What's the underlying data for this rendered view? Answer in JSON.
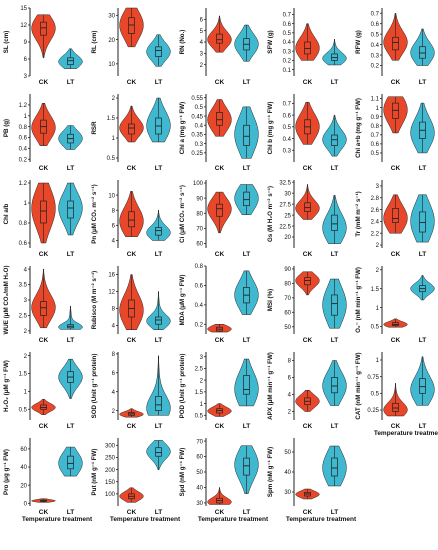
{
  "colors": {
    "ck": "#e8472a",
    "lt": "#3fb8d0",
    "axis": "#222222",
    "outline": "#222222"
  },
  "group_labels": [
    "CK",
    "LT"
  ],
  "xlabel": "Temperature treatment",
  "chart_data": [
    {
      "type": "violin",
      "ylabel": "SL (cm)",
      "ylim": [
        3,
        15
      ],
      "ticks": [
        3,
        6,
        9,
        12,
        15
      ],
      "series": [
        {
          "name": "CK",
          "min": 6.2,
          "q1": 10.2,
          "median": 11.5,
          "q3": 12.5,
          "max": 13.8,
          "mode": 11.5
        },
        {
          "name": "LT",
          "min": 4.3,
          "q1": 5.0,
          "median": 5.7,
          "q3": 6.2,
          "max": 7.8,
          "mode": 5.5
        }
      ]
    },
    {
      "type": "violin",
      "ylabel": "RL (cm)",
      "ylim": [
        5,
        33
      ],
      "ticks": [
        10,
        20,
        30
      ],
      "series": [
        {
          "name": "CK",
          "min": 17,
          "q1": 22.5,
          "median": 26,
          "q3": 29,
          "max": 33,
          "mode": 26
        },
        {
          "name": "LT",
          "min": 9,
          "q1": 13,
          "median": 15.5,
          "q3": 17,
          "max": 22,
          "mode": 15
        }
      ]
    },
    {
      "type": "violin",
      "ylabel": "RN (No.)",
      "ylim": [
        1,
        7
      ],
      "ticks": [
        2,
        3,
        4,
        5,
        6
      ],
      "series": [
        {
          "name": "CK",
          "min": 3.1,
          "q1": 3.9,
          "median": 4.2,
          "q3": 4.7,
          "max": 6.3,
          "mode": 4.2
        },
        {
          "name": "LT",
          "min": 2.3,
          "q1": 3.3,
          "median": 3.8,
          "q3": 4.3,
          "max": 5.5,
          "mode": 3.8
        }
      ]
    },
    {
      "type": "violin",
      "ylabel": "SFW (g)",
      "ylim": [
        0.03,
        0.77
      ],
      "ticks": [
        0.1,
        0.2,
        0.3,
        0.4,
        0.5,
        0.6,
        0.7
      ],
      "series": [
        {
          "name": "CK",
          "min": 0.2,
          "q1": 0.27,
          "median": 0.33,
          "q3": 0.4,
          "max": 0.6,
          "mode": 0.33
        },
        {
          "name": "LT",
          "min": 0.15,
          "q1": 0.2,
          "median": 0.23,
          "q3": 0.27,
          "max": 0.43,
          "mode": 0.22
        }
      ]
    },
    {
      "type": "violin",
      "ylabel": "RFW (g)",
      "ylim": [
        0.1,
        0.75
      ],
      "ticks": [
        0.2,
        0.3,
        0.4,
        0.5,
        0.6,
        0.7
      ],
      "series": [
        {
          "name": "CK",
          "min": 0.25,
          "q1": 0.35,
          "median": 0.42,
          "q3": 0.47,
          "max": 0.7,
          "mode": 0.42
        },
        {
          "name": "LT",
          "min": 0.2,
          "q1": 0.27,
          "median": 0.32,
          "q3": 0.38,
          "max": 0.55,
          "mode": 0.32
        }
      ]
    },
    {
      "type": "violin",
      "ylabel": "PB (g)",
      "ylim": [
        0.15,
        1.4
      ],
      "ticks": [
        0.2,
        0.4,
        0.6,
        0.8,
        1.0,
        1.2
      ],
      "series": [
        {
          "name": "CK",
          "min": 0.45,
          "q1": 0.68,
          "median": 0.8,
          "q3": 0.92,
          "max": 1.23,
          "mode": 0.78
        },
        {
          "name": "LT",
          "min": 0.38,
          "q1": 0.5,
          "median": 0.58,
          "q3": 0.66,
          "max": 0.82,
          "mode": 0.58
        }
      ]
    },
    {
      "type": "violin",
      "ylabel": "RSR",
      "ylim": [
        0.4,
        2.1
      ],
      "ticks": [
        0.5,
        1.0,
        1.5,
        2.0
      ],
      "series": [
        {
          "name": "CK",
          "min": 0.9,
          "q1": 1.1,
          "median": 1.25,
          "q3": 1.35,
          "max": 1.8,
          "mode": 1.25
        },
        {
          "name": "LT",
          "min": 0.9,
          "q1": 1.1,
          "median": 1.3,
          "q3": 1.5,
          "max": 2.0,
          "mode": 1.3
        }
      ]
    },
    {
      "type": "violin",
      "ylabel": "Chl a (mg g⁻¹ FW)",
      "ylim": [
        0.2,
        0.57
      ],
      "ticks": [
        0.25,
        0.3,
        0.35,
        0.4,
        0.45,
        0.5,
        0.55
      ],
      "series": [
        {
          "name": "CK",
          "min": 0.34,
          "q1": 0.4,
          "median": 0.43,
          "q3": 0.47,
          "max": 0.54,
          "mode": 0.43
        },
        {
          "name": "LT",
          "min": 0.22,
          "q1": 0.29,
          "median": 0.34,
          "q3": 0.4,
          "max": 0.5,
          "mode": 0.35
        }
      ]
    },
    {
      "type": "violin",
      "ylabel": "Chl b (mg g⁻¹ FW)",
      "ylim": [
        0.2,
        0.78
      ],
      "ticks": [
        0.3,
        0.4,
        0.5,
        0.6,
        0.7
      ],
      "series": [
        {
          "name": "CK",
          "min": 0.35,
          "q1": 0.44,
          "median": 0.5,
          "q3": 0.56,
          "max": 0.71,
          "mode": 0.5
        },
        {
          "name": "LT",
          "min": 0.25,
          "q1": 0.34,
          "median": 0.39,
          "q3": 0.43,
          "max": 0.6,
          "mode": 0.39
        }
      ]
    },
    {
      "type": "violin",
      "ylabel": "Chl a+b (mg g⁻¹ FW)",
      "ylim": [
        0.4,
        1.15
      ],
      "ticks": [
        0.5,
        0.6,
        0.7,
        0.8,
        0.9,
        1.0,
        1.1
      ],
      "series": [
        {
          "name": "CK",
          "min": 0.72,
          "q1": 0.88,
          "median": 0.97,
          "q3": 1.05,
          "max": 1.12,
          "mode": 0.98
        },
        {
          "name": "LT",
          "min": 0.5,
          "q1": 0.66,
          "median": 0.75,
          "q3": 0.84,
          "max": 1.05,
          "mode": 0.72
        }
      ]
    },
    {
      "type": "violin",
      "ylabel": "Chl a/b",
      "ylim": [
        0.55,
        1.23
      ],
      "ticks": [
        0.6,
        0.8,
        1.0,
        1.2
      ],
      "series": [
        {
          "name": "CK",
          "min": 0.6,
          "q1": 0.8,
          "median": 0.92,
          "q3": 1.02,
          "max": 1.2,
          "mode": 0.95
        },
        {
          "name": "LT",
          "min": 0.68,
          "q1": 0.85,
          "median": 0.95,
          "q3": 1.02,
          "max": 1.2,
          "mode": 0.95
        }
      ]
    },
    {
      "type": "violin",
      "ylabel": "Pn (μM CO₂ m⁻² s⁻¹)",
      "ylim": [
        3,
        12
      ],
      "ticks": [
        4,
        6,
        8,
        10
      ],
      "series": [
        {
          "name": "CK",
          "min": 4.5,
          "q1": 5.8,
          "median": 6.7,
          "q3": 7.8,
          "max": 10.5,
          "mode": 6.5
        },
        {
          "name": "LT",
          "min": 4.0,
          "q1": 4.7,
          "median": 5.3,
          "q3": 5.7,
          "max": 8.0,
          "mode": 5.0
        }
      ]
    },
    {
      "type": "violin",
      "ylabel": "Ci (μM CO₂ m⁻² s⁻¹)",
      "ylim": [
        57,
        102
      ],
      "ticks": [
        60,
        70,
        80,
        90,
        100
      ],
      "series": [
        {
          "name": "CK",
          "min": 67,
          "q1": 78,
          "median": 83,
          "q3": 86,
          "max": 94,
          "mode": 83
        },
        {
          "name": "LT",
          "min": 79,
          "q1": 85,
          "median": 89,
          "q3": 94,
          "max": 99,
          "mode": 90
        }
      ]
    },
    {
      "type": "violin",
      "ylabel": "Gs (M H₂O m⁻² s⁻¹)",
      "ylim": [
        17.5,
        33
      ],
      "ticks": [
        20,
        22.5,
        25,
        27.5,
        30,
        32.5
      ],
      "series": [
        {
          "name": "CK",
          "min": 24,
          "q1": 25.8,
          "median": 26.7,
          "q3": 27.8,
          "max": 32,
          "mode": 26.5
        },
        {
          "name": "LT",
          "min": 18.5,
          "q1": 21.5,
          "median": 23,
          "q3": 25,
          "max": 29.5,
          "mode": 22
        }
      ]
    },
    {
      "type": "violin",
      "ylabel": "Tr (mM m⁻² s⁻¹)",
      "ylim": [
        1.95,
        3.1
      ],
      "ticks": [
        2.0,
        2.2,
        2.4,
        2.6,
        2.8,
        3.0
      ],
      "series": [
        {
          "name": "CK",
          "min": 2.2,
          "q1": 2.38,
          "median": 2.45,
          "q3": 2.62,
          "max": 2.85,
          "mode": 2.45
        },
        {
          "name": "LT",
          "min": 2.05,
          "q1": 2.22,
          "median": 2.38,
          "q3": 2.56,
          "max": 2.85,
          "mode": 2.4
        }
      ]
    },
    {
      "type": "violin",
      "ylabel": "WUE (μM CO₂/mM H₂O)",
      "ylim": [
        1.9,
        4.1
      ],
      "ticks": [
        2.0,
        2.5,
        3.0,
        3.5,
        4.0
      ],
      "series": [
        {
          "name": "CK",
          "min": 2.1,
          "q1": 2.5,
          "median": 2.75,
          "q3": 2.95,
          "max": 4.0,
          "mode": 2.75
        },
        {
          "name": "LT",
          "min": 2.05,
          "q1": 2.1,
          "median": 2.15,
          "q3": 2.2,
          "max": 2.8,
          "mode": 2.12
        }
      ]
    },
    {
      "type": "violin",
      "ylabel": "Rubisco (M m⁻² s⁻¹)",
      "ylim": [
        2,
        18
      ],
      "ticks": [
        4,
        8,
        12,
        16
      ],
      "series": [
        {
          "name": "CK",
          "min": 3,
          "q1": 6,
          "median": 8,
          "q3": 10,
          "max": 16,
          "mode": 7.5
        },
        {
          "name": "LT",
          "min": 3,
          "q1": 4.3,
          "median": 5.3,
          "q3": 6,
          "max": 12,
          "mode": 5
        }
      ]
    },
    {
      "type": "violin",
      "ylabel": "MDA (μM g⁻¹ FW)",
      "ylim": [
        0.1,
        0.8
      ],
      "ticks": [
        0.2,
        0.4,
        0.6,
        0.8
      ],
      "series": [
        {
          "name": "CK",
          "min": 0.12,
          "q1": 0.13,
          "median": 0.15,
          "q3": 0.17,
          "max": 0.2,
          "mode": 0.15
        },
        {
          "name": "LT",
          "min": 0.3,
          "q1": 0.42,
          "median": 0.5,
          "q3": 0.58,
          "max": 0.75,
          "mode": 0.5
        }
      ]
    },
    {
      "type": "violin",
      "ylabel": "MSI (%)",
      "ylim": [
        45,
        92
      ],
      "ticks": [
        50,
        60,
        70,
        80,
        90
      ],
      "series": [
        {
          "name": "CK",
          "min": 72,
          "q1": 79,
          "median": 82,
          "q3": 84,
          "max": 88,
          "mode": 82
        },
        {
          "name": "LT",
          "min": 49,
          "q1": 58,
          "median": 66,
          "q3": 72,
          "max": 83,
          "mode": 65
        }
      ]
    },
    {
      "type": "violin",
      "ylabel": "O₂⁻ (nM min⁻¹ g⁻¹ FW)",
      "ylim": [
        0.3,
        2.1
      ],
      "ticks": [
        0.5,
        1.0,
        1.5,
        2.0
      ],
      "series": [
        {
          "name": "CK",
          "min": 0.48,
          "q1": 0.52,
          "median": 0.55,
          "q3": 0.6,
          "max": 0.7,
          "mode": 0.55
        },
        {
          "name": "LT",
          "min": 1.2,
          "q1": 1.42,
          "median": 1.5,
          "q3": 1.58,
          "max": 1.85,
          "mode": 1.5
        }
      ]
    },
    {
      "type": "violin",
      "ylabel": "H₂O₂ (μM g⁻¹ FW)",
      "ylim": [
        0.2,
        2.1
      ],
      "ticks": [
        0.5,
        1.0,
        1.5,
        2.0
      ],
      "series": [
        {
          "name": "CK",
          "min": 0.35,
          "q1": 0.5,
          "median": 0.55,
          "q3": 0.62,
          "max": 0.78,
          "mode": 0.55
        },
        {
          "name": "LT",
          "min": 0.8,
          "q1": 1.25,
          "median": 1.4,
          "q3": 1.55,
          "max": 1.9,
          "mode": 1.4
        }
      ]
    },
    {
      "type": "violin",
      "ylabel": "SOD (Unit g⁻¹ protein)",
      "ylim": [
        1,
        8.2
      ],
      "ticks": [
        2,
        4,
        6,
        8
      ],
      "series": [
        {
          "name": "CK",
          "min": 1.3,
          "q1": 1.5,
          "median": 1.65,
          "q3": 1.8,
          "max": 2.2,
          "mode": 1.6
        },
        {
          "name": "LT",
          "min": 1.5,
          "q1": 2.0,
          "median": 2.6,
          "q3": 3.5,
          "max": 7.8,
          "mode": 2.2
        }
      ]
    },
    {
      "type": "violin",
      "ylabel": "POD (Unit g⁻¹ protein)",
      "ylim": [
        0.3,
        3.2
      ],
      "ticks": [
        0.5,
        1.0,
        1.5,
        2.0,
        2.5,
        3.0
      ],
      "series": [
        {
          "name": "CK",
          "min": 0.45,
          "q1": 0.6,
          "median": 0.7,
          "q3": 0.78,
          "max": 1.0,
          "mode": 0.68
        },
        {
          "name": "LT",
          "min": 0.9,
          "q1": 1.4,
          "median": 1.6,
          "q3": 2.2,
          "max": 2.9,
          "mode": 1.6
        }
      ]
    },
    {
      "type": "violin",
      "ylabel": "APX (μM min⁻¹ g⁻¹ FW)",
      "ylim": [
        1,
        9
      ],
      "ticks": [
        2,
        4,
        6,
        8
      ],
      "series": [
        {
          "name": "CK",
          "min": 2.0,
          "q1": 2.8,
          "median": 3.2,
          "q3": 3.6,
          "max": 4.5,
          "mode": 3.2
        },
        {
          "name": "LT",
          "min": 2.7,
          "q1": 4.2,
          "median": 5.0,
          "q3": 6.0,
          "max": 8.0,
          "mode": 5.0
        }
      ]
    },
    {
      "type": "violin",
      "ylabel": "CAT (nM min⁻¹ g⁻¹ FW)",
      "ylim": [
        0.1,
        1.12
      ],
      "ticks": [
        0.25,
        0.5,
        0.75,
        1.0
      ],
      "series": [
        {
          "name": "CK",
          "min": 0.16,
          "q1": 0.23,
          "median": 0.28,
          "q3": 0.35,
          "max": 0.65,
          "mode": 0.25
        },
        {
          "name": "LT",
          "min": 0.32,
          "q1": 0.5,
          "median": 0.6,
          "q3": 0.72,
          "max": 1.05,
          "mode": 0.55
        }
      ]
    },
    {
      "type": "violin",
      "ylabel": "Pro (μg g⁻¹ FW)",
      "ylim": [
        -3,
        72
      ],
      "ticks": [
        0,
        20,
        40,
        60
      ],
      "series": [
        {
          "name": "CK",
          "min": 1,
          "q1": 2,
          "median": 2.7,
          "q3": 3.5,
          "max": 5,
          "mode": 2.7
        },
        {
          "name": "LT",
          "min": 30,
          "q1": 38,
          "median": 44,
          "q3": 52,
          "max": 62,
          "mode": 44
        }
      ]
    },
    {
      "type": "violin",
      "ylabel": "Put (nM g⁻¹ FW)",
      "ylim": [
        50,
        330
      ],
      "ticks": [
        100,
        150,
        200,
        250,
        300
      ],
      "series": [
        {
          "name": "CK",
          "min": 65,
          "q1": 80,
          "median": 90,
          "q3": 100,
          "max": 125,
          "mode": 90
        },
        {
          "name": "LT",
          "min": 200,
          "q1": 255,
          "median": 270,
          "q3": 290,
          "max": 320,
          "mode": 275
        }
      ]
    },
    {
      "type": "violin",
      "ylabel": "Spd (nM g⁻¹ FW)",
      "ylim": [
        28,
        72
      ],
      "ticks": [
        30,
        40,
        50,
        60,
        70
      ],
      "series": [
        {
          "name": "CK",
          "min": 29,
          "q1": 30,
          "median": 31.5,
          "q3": 33,
          "max": 40,
          "mode": 30.5
        },
        {
          "name": "LT",
          "min": 36,
          "q1": 48,
          "median": 54,
          "q3": 59,
          "max": 67,
          "mode": 55
        }
      ]
    },
    {
      "type": "violin",
      "ylabel": "Spm (nM g⁻¹ FW)",
      "ylim": [
        23,
        57
      ],
      "ticks": [
        30,
        40,
        50
      ],
      "series": [
        {
          "name": "CK",
          "min": 26.5,
          "q1": 28,
          "median": 29,
          "q3": 29.8,
          "max": 31.5,
          "mode": 28.8
        },
        {
          "name": "LT",
          "min": 33,
          "q1": 38,
          "median": 42,
          "q3": 47,
          "max": 53,
          "mode": 42
        }
      ]
    }
  ]
}
